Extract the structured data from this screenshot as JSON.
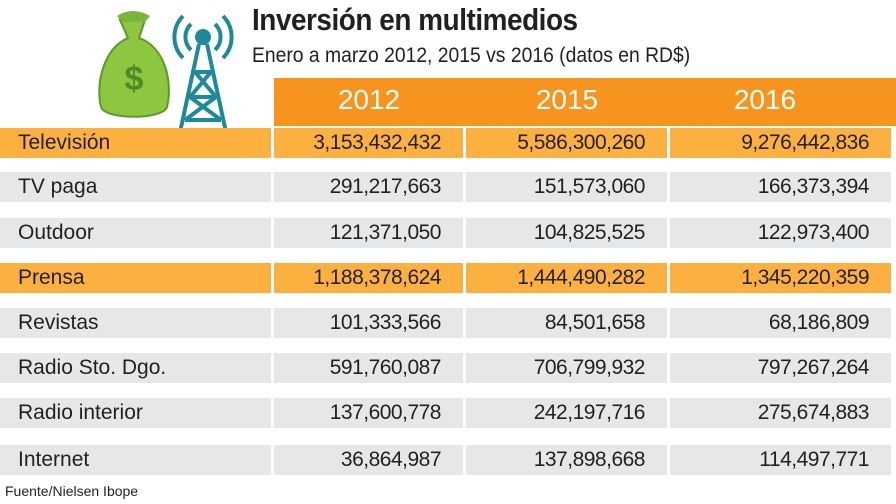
{
  "title": "Inversión en multimedios",
  "subtitle": "Enero a marzo 2012, 2015 vs 2016 (datos en RD$)",
  "source": "Fuente/Nielsen Ibope",
  "colors": {
    "header": "#f7941d",
    "highlight_row": "#fbb040",
    "row": "#e6e7e8",
    "bag": "#8dc63f",
    "tower": "#1b8a9a"
  },
  "icons": [
    "money-bag-icon",
    "radio-tower-icon"
  ],
  "chart_data": {
    "type": "table",
    "title": "Inversión en multimedios",
    "columns": [
      "2012",
      "2015",
      "2016"
    ],
    "rows": [
      {
        "label": "Televisión",
        "values": [
          "3,153,432,432",
          "5,586,300,260",
          "9,276,442,836"
        ],
        "highlight": true
      },
      {
        "label": "TV paga",
        "values": [
          "291,217,663",
          "151,573,060",
          "166,373,394"
        ],
        "highlight": false
      },
      {
        "label": "Outdoor",
        "values": [
          "121,371,050",
          "104,825,525",
          "122,973,400"
        ],
        "highlight": false
      },
      {
        "label": "Prensa",
        "values": [
          "1,188,378,624",
          "1,444,490,282",
          "1,345,220,359"
        ],
        "highlight": true
      },
      {
        "label": "Revistas",
        "values": [
          "101,333,566",
          "84,501,658",
          "68,186,809"
        ],
        "highlight": false
      },
      {
        "label": "Radio Sto. Dgo.",
        "values": [
          "591,760,087",
          "706,799,932",
          "797,267,264"
        ],
        "highlight": false
      },
      {
        "label": "Radio interior",
        "values": [
          "137,600,778",
          "242,197,716",
          "275,674,883"
        ],
        "highlight": false
      },
      {
        "label": "Internet",
        "values": [
          "36,864,987",
          "137,898,668",
          "114,497,771"
        ],
        "highlight": false
      }
    ]
  }
}
